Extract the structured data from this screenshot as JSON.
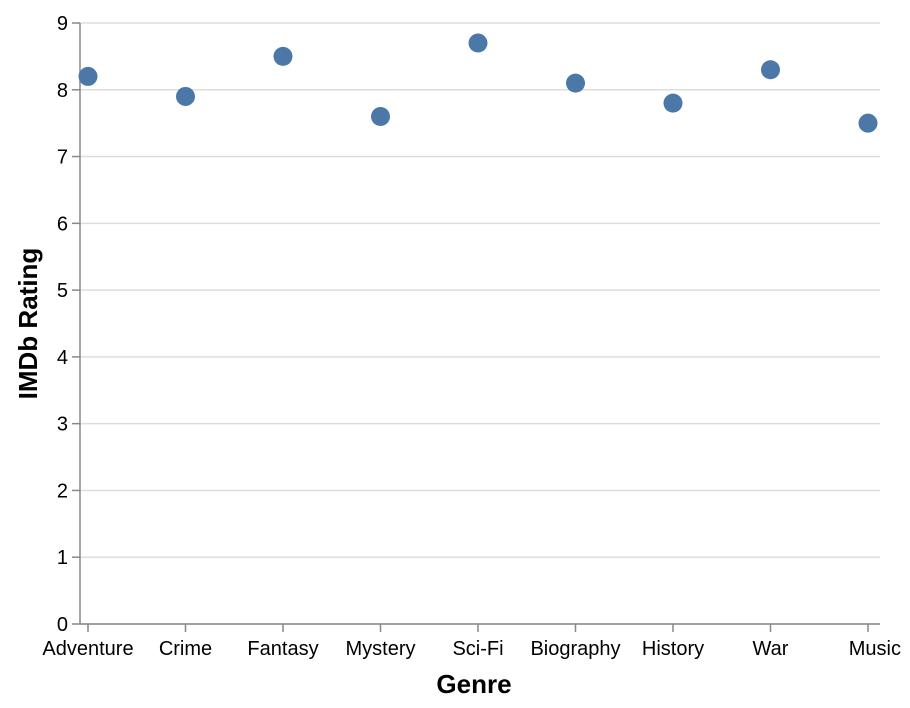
{
  "chart_data": {
    "type": "scatter",
    "xlabel": "Genre",
    "ylabel": "IMDb Rating",
    "categories": [
      "Adventure",
      "Crime",
      "Fantasy",
      "Mystery",
      "Sci-Fi",
      "Biography",
      "History",
      "War",
      "Music"
    ],
    "values": [
      8.2,
      7.9,
      8.5,
      7.6,
      8.7,
      8.1,
      7.8,
      8.3,
      7.5
    ],
    "ylim": [
      0,
      9
    ],
    "yticks": [
      0,
      1,
      2,
      3,
      4,
      5,
      6,
      7,
      8,
      9
    ],
    "grid": true,
    "point_color": "#4c78a8"
  }
}
